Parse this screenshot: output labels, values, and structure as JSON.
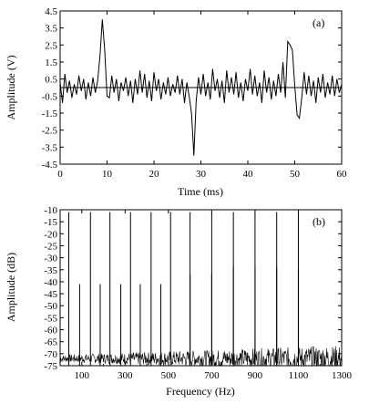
{
  "chart_data": [
    {
      "type": "line",
      "panel_label": "(a)",
      "xlabel": "Time (ms)",
      "ylabel": "Amplitude (V)",
      "xlim": [
        0,
        60
      ],
      "ylim": [
        -4.5,
        4.5
      ],
      "x_ticks": [
        "0",
        "10",
        "20",
        "30",
        "40",
        "50",
        "60"
      ],
      "y_ticks": [
        "4.5",
        "3.5",
        "2.5",
        "1.5",
        "0.5",
        "-0.5",
        "-1.5",
        "-2.5",
        "-3.5",
        "-4.5"
      ],
      "x_tick_values": [
        0,
        10,
        20,
        30,
        40,
        50,
        60
      ],
      "y_tick_values": [
        4.5,
        3.5,
        2.5,
        1.5,
        0.5,
        -0.5,
        -1.5,
        -2.5,
        -3.5,
        -4.5
      ],
      "zero_line": 0,
      "series": [
        {
          "x": [
            0,
            0.5,
            1,
            1.5,
            2,
            2.5,
            3,
            3.5,
            4,
            4.5,
            5,
            5.5,
            6,
            6.5,
            7,
            7.5,
            8,
            8.5,
            9,
            9.5,
            10,
            10.5,
            11,
            11.5,
            12,
            12.5,
            13,
            13.5,
            14,
            14.5,
            15,
            15.5,
            16,
            16.5,
            17,
            17.5,
            18,
            18.5,
            19,
            19.5,
            20,
            20.5,
            21,
            21.5,
            22,
            22.5,
            23,
            23.5,
            24,
            24.5,
            25,
            25.5,
            26,
            26.5,
            27,
            27.5,
            28,
            28.5,
            29,
            29.5,
            30,
            30.5,
            31,
            31.5,
            32,
            32.5,
            33,
            33.5,
            34,
            34.5,
            35,
            35.5,
            36,
            36.5,
            37,
            37.5,
            38,
            38.5,
            39,
            39.5,
            40,
            40.5,
            41,
            41.5,
            42,
            42.5,
            43,
            43.5,
            44,
            44.5,
            45,
            45.5,
            46,
            46.5,
            47,
            47.5,
            48,
            48.5,
            49,
            49.5,
            50,
            50.5,
            51,
            51.5,
            52,
            52.5,
            53,
            53.5,
            54,
            54.5,
            55,
            55.5,
            56,
            56.5,
            57,
            57.5,
            58,
            58.5,
            59,
            59.5,
            60
          ],
          "values": [
            0.3,
            -0.9,
            0.8,
            -0.3,
            0.4,
            -0.6,
            0.2,
            -0.4,
            0.7,
            -0.2,
            0.5,
            -0.7,
            0.3,
            -0.5,
            0.6,
            -0.3,
            0.4,
            1.9,
            4.0,
            2.2,
            -0.5,
            -0.6,
            0.7,
            -0.3,
            0.5,
            -0.8,
            0.3,
            -0.2,
            0.6,
            -0.5,
            0.4,
            -0.9,
            0.5,
            -0.4,
            1.0,
            -0.3,
            0.8,
            -0.6,
            0.4,
            -0.8,
            0.9,
            -0.2,
            0.5,
            -0.7,
            0.3,
            -0.4,
            0.6,
            -0.5,
            0.2,
            -0.3,
            0.7,
            -0.4,
            0.5,
            -0.9,
            0.3,
            -0.5,
            -1.5,
            -4.0,
            -0.8,
            0.6,
            -0.4,
            0.8,
            -0.5,
            0.3,
            -0.7,
            1.1,
            -0.2,
            0.5,
            -0.6,
            0.4,
            -0.9,
            1.0,
            -0.3,
            0.6,
            -0.4,
            0.9,
            -0.6,
            0.3,
            -0.8,
            0.5,
            -0.2,
            1.1,
            -0.4,
            0.7,
            -0.5,
            0.3,
            -0.9,
            1.0,
            -0.3,
            0.6,
            -0.7,
            0.4,
            -0.5,
            0.8,
            -0.3,
            1.5,
            -0.6,
            2.7,
            2.5,
            2.2,
            0.1,
            -1.6,
            -1.8,
            -0.6,
            0.9,
            -0.4,
            0.7,
            -0.5,
            0.4,
            -0.9,
            0.6,
            -0.3,
            0.8,
            -0.6,
            0.3,
            -0.4,
            0.7,
            -0.5,
            0.5,
            -0.3,
            0.2
          ]
        }
      ]
    },
    {
      "type": "line",
      "panel_label": "(b)",
      "xlabel": "Frequency (Hz)",
      "ylabel": "Amplitude (dB)",
      "xlim": [
        0,
        1300
      ],
      "ylim": [
        -75,
        -10
      ],
      "x_ticks": [
        "100",
        "300",
        "500",
        "700",
        "900",
        "1100",
        "1300"
      ],
      "x_tick_values": [
        100,
        300,
        500,
        700,
        900,
        1100,
        1300
      ],
      "x_minor_tick_values": [
        200,
        400,
        600,
        800,
        1000,
        1200
      ],
      "y_ticks": [
        "-10",
        "-15",
        "-20",
        "-25",
        "-30",
        "-35",
        "-40",
        "-45",
        "-50",
        "-55",
        "-60",
        "-65",
        "-70",
        "-75"
      ],
      "y_tick_values": [
        -10,
        -15,
        -20,
        -25,
        -30,
        -35,
        -40,
        -45,
        -50,
        -55,
        -60,
        -65,
        -70,
        -75
      ],
      "noise_floor_db": -72,
      "peaks": [
        {
          "x": 40,
          "value": -11
        },
        {
          "x": 90,
          "value": -41
        },
        {
          "x": 140,
          "value": -11
        },
        {
          "x": 185,
          "value": -41
        },
        {
          "x": 230,
          "value": -11
        },
        {
          "x": 280,
          "value": -41
        },
        {
          "x": 325,
          "value": -11
        },
        {
          "x": 370,
          "value": -41
        },
        {
          "x": 420,
          "value": -11
        },
        {
          "x": 465,
          "value": -41
        },
        {
          "x": 510,
          "value": -11
        },
        {
          "x": 600,
          "value": -11
        },
        {
          "x": 700,
          "value": -11
        },
        {
          "x": 600,
          "value": -37
        },
        {
          "x": 700,
          "value": -37
        },
        {
          "x": 800,
          "value": -11
        },
        {
          "x": 800,
          "value": -34
        },
        {
          "x": 900,
          "value": -11
        },
        {
          "x": 900,
          "value": -34
        },
        {
          "x": 1000,
          "value": -11
        },
        {
          "x": 1000,
          "value": -34
        },
        {
          "x": 1100,
          "value": -11
        },
        {
          "x": 1100,
          "value": -35
        }
      ]
    }
  ]
}
